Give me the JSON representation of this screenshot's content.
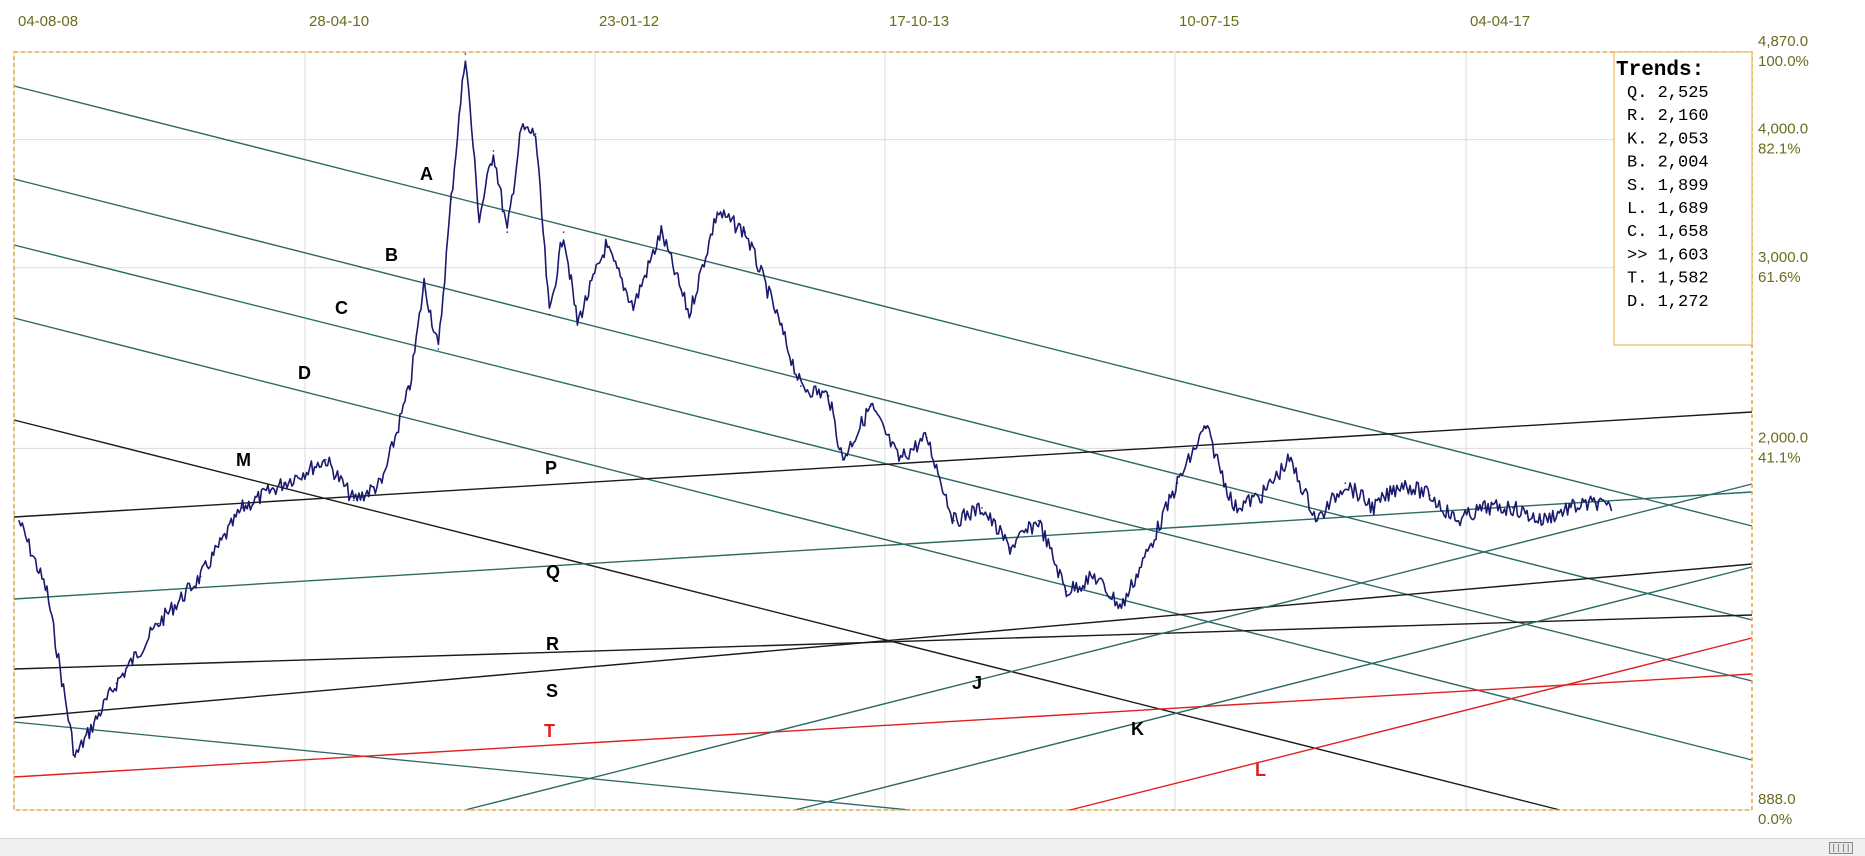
{
  "chart_data": {
    "type": "line",
    "x_axis": {
      "ticks": [
        "04-08-08",
        "28-04-10",
        "23-01-12",
        "17-10-13",
        "10-07-15",
        "04-04-17"
      ]
    },
    "y_axis": {
      "scale": "log",
      "ylim": [
        888.0,
        4870.0
      ],
      "ticks": [
        {
          "price": "4,870.0",
          "pct": "100.0%",
          "value": 4870
        },
        {
          "price": "4,000.0",
          "pct": "82.1%",
          "value": 4000
        },
        {
          "price": "3,000.0",
          "pct": "61.6%",
          "value": 3000
        },
        {
          "price": "2,000.0",
          "pct": "41.1%",
          "value": 2000
        },
        {
          "price": "888.0",
          "pct": "0.0%",
          "value": 888
        }
      ]
    },
    "grid": true,
    "colors": {
      "price": "#1a1a6e",
      "trend": "#2d6a64",
      "black": "#1a1a1a",
      "red": "#e02020",
      "axis": "#6b6b1e",
      "border": "#e8a93a"
    },
    "series": [
      {
        "x": [
          "2008-08",
          "2008-10",
          "2008-12",
          "2009-03",
          "2009-06",
          "2009-09",
          "2009-12",
          "2010-03",
          "2010-06",
          "2010-08",
          "2010-10",
          "2010-12",
          "2011-01",
          "2011-02",
          "2011-03",
          "2011-04",
          "2011-05",
          "2011-06",
          "2011-07",
          "2011-08",
          "2011-09",
          "2011-10",
          "2011-11",
          "2011-12",
          "2012-02",
          "2012-04",
          "2012-06",
          "2012-08",
          "2012-10",
          "2012-12",
          "2013-02",
          "2013-04",
          "2013-06",
          "2013-07",
          "2013-09",
          "2013-11",
          "2014-01",
          "2014-03",
          "2014-05",
          "2014-07",
          "2014-09",
          "2014-11",
          "2015-01",
          "2015-03",
          "2015-05",
          "2015-07",
          "2015-09",
          "2015-11",
          "2016-01",
          "2016-03",
          "2016-05",
          "2016-07",
          "2016-09",
          "2016-11",
          "2017-01",
          "2017-03",
          "2017-05",
          "2017-07",
          "2017-09",
          "2017-11",
          "2018-01",
          "2018-02"
        ],
        "values": [
          1700,
          1450,
          1000,
          1180,
          1350,
          1500,
          1750,
          1850,
          1950,
          1780,
          1850,
          2300,
          2900,
          2500,
          3500,
          4850,
          3350,
          3900,
          3250,
          4100,
          4050,
          2700,
          3250,
          2650,
          3150,
          2750,
          3250,
          2700,
          3400,
          3250,
          2750,
          2300,
          2250,
          1950,
          2200,
          1950,
          2050,
          1700,
          1750,
          1600,
          1700,
          1450,
          1500,
          1400,
          1600,
          1850,
          2100,
          1750,
          1800,
          1950,
          1700,
          1850,
          1750,
          1850,
          1800,
          1700,
          1750,
          1750,
          1700,
          1750,
          1770,
          1740
        ]
      }
    ],
    "trend_lines": [
      {
        "label": "A",
        "color": "#2d6a64"
      },
      {
        "label": "B",
        "color": "#2d6a64"
      },
      {
        "label": "C",
        "color": "#2d6a64"
      },
      {
        "label": "D",
        "color": "#2d6a64"
      },
      {
        "label": "M",
        "color": "#1a1a1a"
      },
      {
        "label": "P",
        "color": "#1a1a1a"
      },
      {
        "label": "Q",
        "color": "#2d6a64"
      },
      {
        "label": "R",
        "color": "#1a1a1a"
      },
      {
        "label": "S",
        "color": "#1a1a1a"
      },
      {
        "label": "T",
        "color": "#e02020"
      },
      {
        "label": "J",
        "color": "#2d6a64"
      },
      {
        "label": "K",
        "color": "#2d6a64"
      },
      {
        "label": "L",
        "color": "#e02020"
      }
    ],
    "legend": {
      "title": "Trends:",
      "position": "top-right",
      "items": [
        {
          "text": "Q. 2,525",
          "color": "#000000"
        },
        {
          "text": "R. 2,160",
          "color": "#000000"
        },
        {
          "text": "K. 2,053",
          "color": "#000000"
        },
        {
          "text": "B. 2,004",
          "color": "#000000"
        },
        {
          "text": "S. 1,899",
          "color": "#000000"
        },
        {
          "text": "L. 1,689",
          "color": "#e02020"
        },
        {
          "text": "C. 1,658",
          "color": "#000000"
        },
        {
          "text": ">> 1,603",
          "color": "#000000"
        },
        {
          "text": "T. 1,582",
          "color": "#e02020"
        },
        {
          "text": "D. 1,272",
          "color": "#000000"
        }
      ]
    }
  }
}
